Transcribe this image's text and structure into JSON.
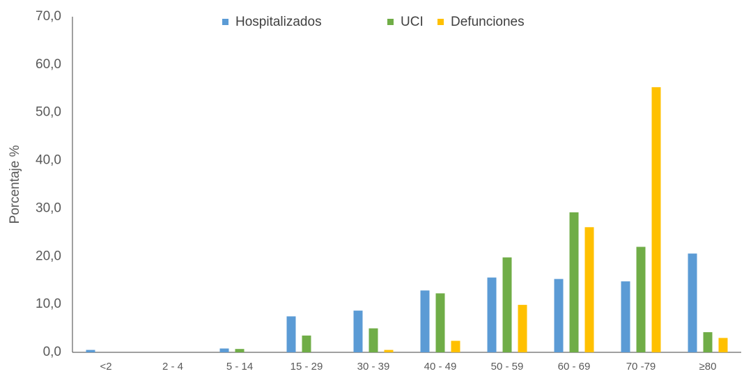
{
  "chart_data": {
    "type": "bar",
    "y_label": "Porcentaje %",
    "categories": [
      "<2",
      "2 - 4",
      "5 - 14",
      "15 - 29",
      "30 - 39",
      "40 - 49",
      "50 - 59",
      "60 - 69",
      "70 -79",
      "≥80"
    ],
    "series": [
      {
        "name": "Hospitalizados",
        "color": "#5b9bd5",
        "values": [
          0.5,
          0,
          0.8,
          7.5,
          8.7,
          12.9,
          15.6,
          15.3,
          14.8,
          20.6
        ]
      },
      {
        "name": "UCI",
        "color": "#70ad47",
        "values": [
          0,
          0,
          0.7,
          3.5,
          5.0,
          12.3,
          19.8,
          29.2,
          22.0,
          4.2
        ]
      },
      {
        "name": "Defunciones",
        "color": "#ffc000",
        "values": [
          0,
          0,
          0,
          0,
          0.5,
          2.4,
          9.9,
          26.1,
          55.3,
          3.0
        ]
      }
    ],
    "ylim": [
      0,
      70
    ],
    "yticks": [
      {
        "value": 0,
        "label": "0,0"
      },
      {
        "value": 10,
        "label": "10,0"
      },
      {
        "value": 20,
        "label": "20,0"
      },
      {
        "value": 30,
        "label": "30,0"
      },
      {
        "value": 40,
        "label": "40,0"
      },
      {
        "value": 50,
        "label": "50,0"
      },
      {
        "value": 60,
        "label": "60,0"
      },
      {
        "value": 70,
        "label": "70,0"
      }
    ],
    "grid": false,
    "legend": "top"
  }
}
